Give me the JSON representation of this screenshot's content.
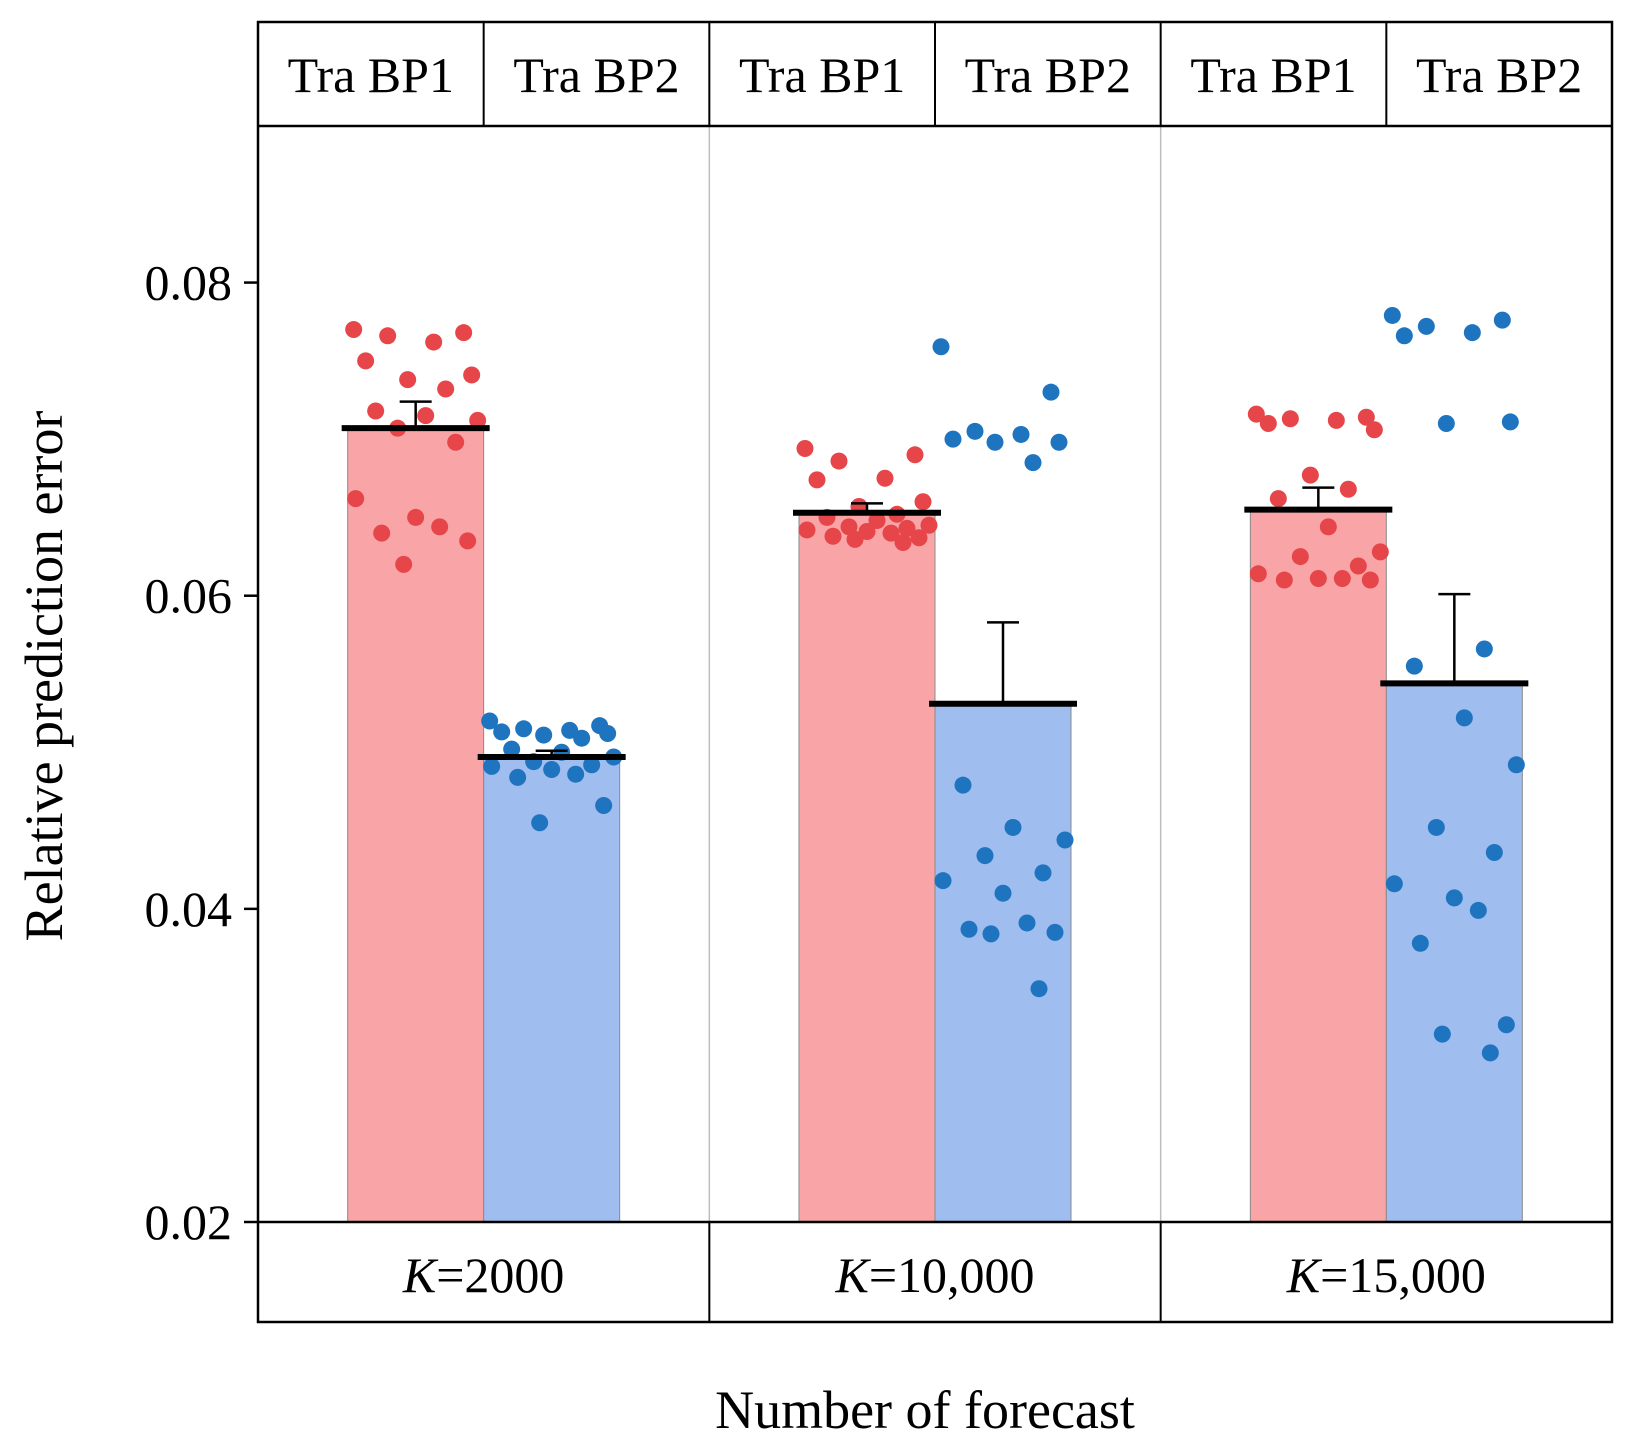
{
  "chart_data": {
    "type": "bar",
    "title": "",
    "xlabel": "Number of forecast",
    "ylabel": "Relative prediction error",
    "ylim": [
      0.02,
      0.09
    ],
    "yticks": [
      0.02,
      0.04,
      0.06,
      0.08
    ],
    "ytick_labels": [
      "0.02",
      "0.04",
      "0.06",
      "0.08"
    ],
    "grid": false,
    "groups": [
      {
        "label_prefix": "K",
        "label_suffix": "=2000"
      },
      {
        "label_prefix": "K",
        "label_suffix": "=10,000"
      },
      {
        "label_prefix": "K",
        "label_suffix": "=15,000"
      }
    ],
    "series": [
      {
        "name": "Tra BP1",
        "color": "#f9a5a7",
        "point_color": "#e64649",
        "values": [
          0.0707,
          0.0653,
          0.0655
        ],
        "error": [
          0.0017,
          0.0006,
          0.0014
        ],
        "points": [
          [
            0.077,
            0.0768,
            0.0766,
            0.0762,
            0.075,
            0.0741,
            0.0738,
            0.0732,
            0.0718,
            0.0715,
            0.0712,
            0.0707,
            0.0698,
            0.0662,
            0.065,
            0.0644,
            0.064,
            0.0635,
            0.062
          ],
          [
            0.0694,
            0.069,
            0.0686,
            0.0675,
            0.0674,
            0.066,
            0.0657,
            0.0652,
            0.065,
            0.0648,
            0.0645,
            0.0644,
            0.0643,
            0.0642,
            0.0641,
            0.064,
            0.0638,
            0.0637,
            0.0636,
            0.0634
          ],
          [
            0.0716,
            0.0714,
            0.0713,
            0.0712,
            0.071,
            0.0706,
            0.0677,
            0.0668,
            0.0662,
            0.0644,
            0.0628,
            0.0625,
            0.0619,
            0.0614,
            0.0611,
            0.0611,
            0.061,
            0.061
          ]
        ]
      },
      {
        "name": "Tra BP2",
        "color": "#9fbdee",
        "point_color": "#1f74c0",
        "values": [
          0.0497,
          0.0531,
          0.0544
        ],
        "error": [
          0.0004,
          0.0052,
          0.0057
        ],
        "points": [
          [
            0.052,
            0.0517,
            0.0515,
            0.0514,
            0.0513,
            0.0512,
            0.0511,
            0.0509,
            0.0502,
            0.05,
            0.0497,
            0.0494,
            0.0492,
            0.0491,
            0.0489,
            0.0486,
            0.0484,
            0.0466,
            0.0455
          ],
          [
            0.0759,
            0.073,
            0.0705,
            0.0703,
            0.07,
            0.0698,
            0.0698,
            0.0685,
            0.0479,
            0.0452,
            0.0444,
            0.0434,
            0.0423,
            0.0418,
            0.041,
            0.0391,
            0.0387,
            0.0385,
            0.0384,
            0.0349
          ],
          [
            0.0779,
            0.0776,
            0.0772,
            0.0768,
            0.0766,
            0.0711,
            0.071,
            0.0566,
            0.0555,
            0.0522,
            0.0492,
            0.0452,
            0.0436,
            0.0416,
            0.0407,
            0.0399,
            0.0378,
            0.0326,
            0.032,
            0.0308
          ]
        ]
      }
    ]
  }
}
